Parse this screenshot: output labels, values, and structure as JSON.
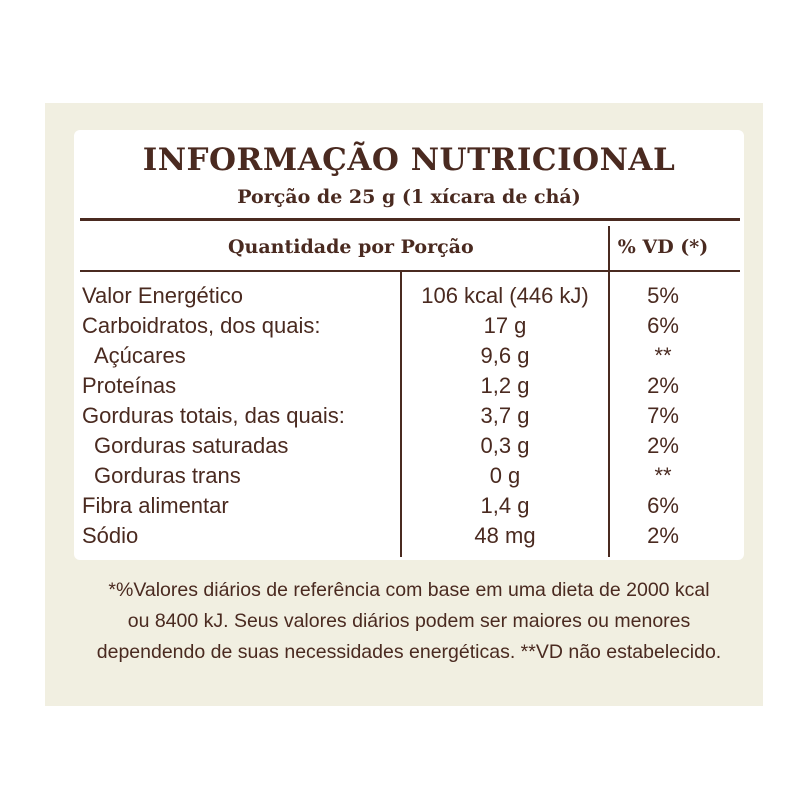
{
  "title": "INFORMAÇÃO NUTRICIONAL",
  "serving": "Porção de 25 g (1 xícara de chá)",
  "header": {
    "quantity": "Quantidade por Porção",
    "vd": "% VD (*)"
  },
  "rows": [
    {
      "name": "Valor Energético",
      "qty": "106 kcal (446 kJ)",
      "vd": "5%"
    },
    {
      "name": "Carboidratos, dos quais:",
      "qty": "17 g",
      "vd": "6%"
    },
    {
      "name": "Açúcares",
      "qty": "9,6 g",
      "vd": "**"
    },
    {
      "name": "Proteínas",
      "qty": "1,2 g",
      "vd": "2%"
    },
    {
      "name": "Gorduras totais, das quais:",
      "qty": "3,7 g",
      "vd": "7%"
    },
    {
      "name": "Gorduras saturadas",
      "qty": "0,3 g",
      "vd": "2%"
    },
    {
      "name": "Gorduras trans",
      "qty": "0 g",
      "vd": "**"
    },
    {
      "name": "Fibra alimentar",
      "qty": "1,4 g",
      "vd": "6%"
    },
    {
      "name": "Sódio",
      "qty": "48 mg",
      "vd": "2%"
    }
  ],
  "footnote": [
    "*%Valores diários de referência com base em uma dieta de 2000 kcal",
    "ou 8400 kJ. Seus valores diários podem ser maiores ou menores",
    "dependendo de suas necessidades energéticas. **VD não estabelecido."
  ],
  "colors": {
    "text": "#4a2a20",
    "panel": "#f1efe1",
    "box": "#ffffff"
  }
}
